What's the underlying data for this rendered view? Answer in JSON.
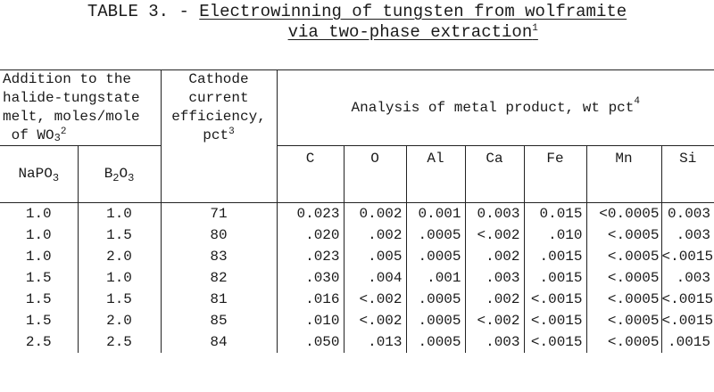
{
  "caption": {
    "label": "TABLE 3. - ",
    "title_line1": "Electrowinning of tungsten from wolframite",
    "title_line2": "via two-phase extraction",
    "title_sup": "1"
  },
  "headers": {
    "addition_l1": "Addition to the",
    "addition_l2": "halide-tungstate",
    "addition_l3": "melt, moles/mole",
    "addition_l4": "of WO",
    "addition_l4_sub": "3",
    "addition_sup": "2",
    "eff_l1": "Cathode",
    "eff_l2": "current",
    "eff_l3": "efficiency,",
    "eff_l4": "pct",
    "eff_sup": "3",
    "analysis": "Analysis of metal product, wt pct",
    "analysis_sup": "4",
    "napo3": "NaPO",
    "napo3_sub": "3",
    "b2o3_b": "B",
    "b2o3_b_sub": "2",
    "b2o3_o": "O",
    "b2o3_o_sub": "3",
    "elements": [
      "C",
      "O",
      "Al",
      "Ca",
      "Fe",
      "Mn",
      "Si"
    ]
  },
  "rows": [
    {
      "napo3": "1.0",
      "b2o3": "1.0",
      "eff": "71",
      "C": "0.023",
      "O": "0.002",
      "Al": "0.001",
      "Ca": "0.003",
      "Fe": "0.015",
      "Mn": "<0.0005",
      "Si": "0.003"
    },
    {
      "napo3": "1.0",
      "b2o3": "1.5",
      "eff": "80",
      "C": ".020",
      "O": ".002",
      "Al": ".0005",
      "Ca": "<.002",
      "Fe": ".010",
      "Mn": "<.0005",
      "Si": ".003"
    },
    {
      "napo3": "1.0",
      "b2o3": "2.0",
      "eff": "83",
      "C": ".023",
      "O": ".005",
      "Al": ".0005",
      "Ca": ".002",
      "Fe": ".0015",
      "Mn": "<.0005",
      "Si": "<.0015"
    },
    {
      "napo3": "1.5",
      "b2o3": "1.0",
      "eff": "82",
      "C": ".030",
      "O": ".004",
      "Al": ".001",
      "Ca": ".003",
      "Fe": ".0015",
      "Mn": "<.0005",
      "Si": ".003"
    },
    {
      "napo3": "1.5",
      "b2o3": "1.5",
      "eff": "81",
      "C": ".016",
      "O": "<.002",
      "Al": ".0005",
      "Ca": ".002",
      "Fe": "<.0015",
      "Mn": "<.0005",
      "Si": "<.0015"
    },
    {
      "napo3": "1.5",
      "b2o3": "2.0",
      "eff": "85",
      "C": ".010",
      "O": "<.002",
      "Al": ".0005",
      "Ca": "<.002",
      "Fe": "<.0015",
      "Mn": "<.0005",
      "Si": "<.0015"
    },
    {
      "napo3": "2.5",
      "b2o3": "2.5",
      "eff": "84",
      "C": ".050",
      "O": ".013",
      "Al": ".0005",
      "Ca": ".003",
      "Fe": "<.0015",
      "Mn": "<.0005",
      "Si": ".0015"
    }
  ]
}
